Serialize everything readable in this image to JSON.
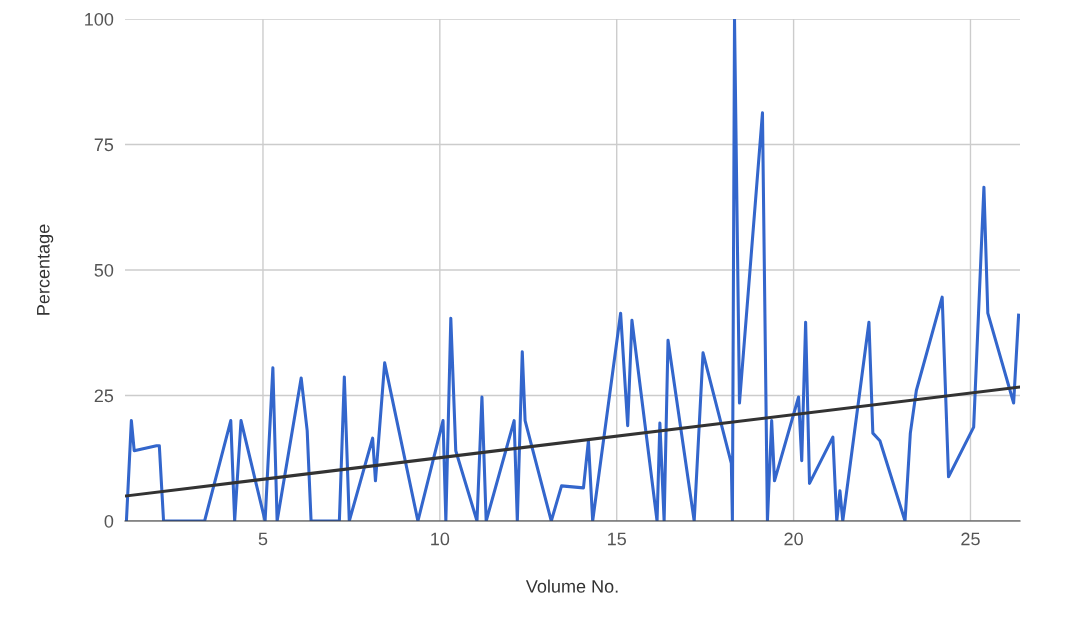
{
  "chart_data": {
    "type": "line",
    "xlabel": "Volume No.",
    "ylabel": "Percentage",
    "xlim": [
      1.1,
      26.4
    ],
    "ylim": [
      0,
      100
    ],
    "xticks": [
      5,
      10,
      15,
      20,
      25
    ],
    "yticks": [
      0,
      25,
      50,
      75,
      100
    ],
    "grid": true,
    "line_style": "solid",
    "series": [
      {
        "color": "#3366cc",
        "x": [
          1.14,
          1.28,
          1.36,
          1.99,
          2.07,
          2.19,
          3.35,
          4.09,
          4.2,
          4.38,
          5.06,
          5.28,
          5.4,
          6.08,
          6.25,
          6.36,
          7.16,
          7.3,
          7.44,
          8.1,
          8.18,
          8.44,
          9.38,
          10.09,
          10.17,
          10.31,
          10.45,
          11.05,
          11.19,
          11.31,
          12.1,
          12.19,
          12.33,
          12.41,
          13.15,
          13.44,
          14.06,
          14.2,
          14.32,
          15.11,
          15.31,
          15.43,
          16.14,
          16.22,
          16.34,
          16.45,
          17.19,
          17.44,
          18.24,
          18.27,
          18.33,
          18.47,
          19.12,
          19.26,
          19.38,
          19.46,
          20.14,
          20.23,
          20.34,
          20.45,
          21.11,
          21.22,
          21.31,
          21.39,
          22.13,
          22.24,
          22.44,
          23.15,
          23.3,
          23.47,
          24.2,
          24.38,
          25.09,
          25.38,
          25.49,
          26.22,
          26.36
        ],
        "values": [
          0,
          20,
          14,
          15,
          15,
          0,
          0,
          20,
          0,
          20,
          0,
          30.5,
          0,
          28.5,
          18,
          0,
          0,
          28.7,
          0,
          16.5,
          8,
          31.5,
          0,
          20,
          0,
          40.4,
          14,
          0,
          24.7,
          0,
          20,
          0,
          33.7,
          20,
          0,
          7,
          6.6,
          16,
          0,
          41.4,
          19,
          40,
          0,
          19.5,
          0,
          36,
          0,
          33.5,
          11.5,
          0,
          100,
          23.5,
          81.3,
          0,
          20,
          8,
          24.7,
          12,
          39.6,
          7.5,
          16.7,
          0,
          6,
          0,
          39.6,
          17.5,
          16,
          0,
          17.5,
          26,
          44.6,
          8.8,
          18.7,
          66.5,
          41.4,
          23.5,
          41
        ]
      },
      {
        "color": "#333333",
        "x": [
          1.14,
          26.4
        ],
        "values": [
          5,
          26.7
        ]
      }
    ]
  }
}
